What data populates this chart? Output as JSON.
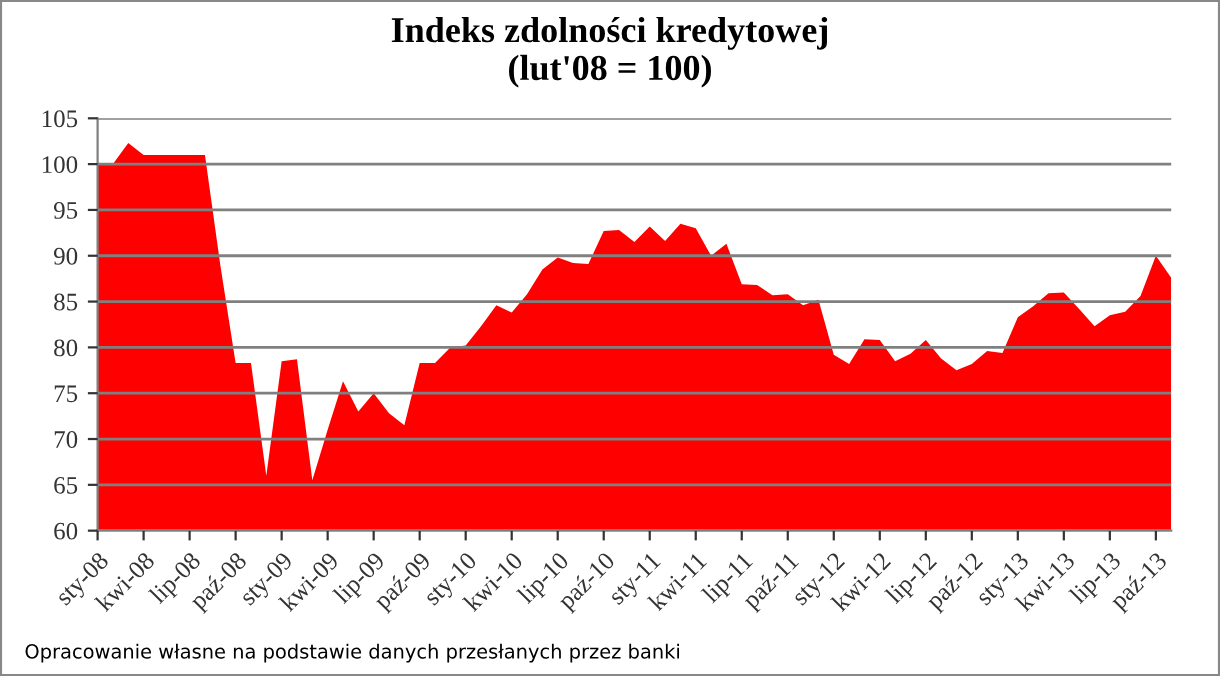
{
  "chart_data": {
    "type": "area",
    "title": "Indeks zdolności kredytowej\n(lut'08 = 100)",
    "categories": [
      "sty-08",
      null,
      null,
      "kwi-08",
      null,
      null,
      "lip-08",
      null,
      null,
      "paź-08",
      null,
      null,
      "sty-09",
      null,
      null,
      "kwi-09",
      null,
      null,
      "lip-09",
      null,
      null,
      "paź-09",
      null,
      null,
      "sty-10",
      null,
      null,
      "kwi-10",
      null,
      null,
      "lip-10",
      null,
      null,
      "paź-10",
      null,
      null,
      "sty-11",
      null,
      null,
      "kwi-11",
      null,
      null,
      "lip-11",
      null,
      null,
      "paź-11",
      null,
      null,
      "sty-12",
      null,
      null,
      "kwi-12",
      null,
      null,
      "lip-12",
      null,
      null,
      "paź-12",
      null,
      null,
      "sty-13",
      null,
      null,
      "kwi-13",
      null,
      null,
      "lip-13",
      null,
      null,
      "paź-13",
      null
    ],
    "series": [
      {
        "color": "#ff0000",
        "values": [
          100,
          100,
          102.3,
          101,
          101,
          101,
          101,
          101,
          89,
          78.3,
          78.3,
          66,
          78.5,
          78.7,
          65.5,
          71,
          76.3,
          73,
          75,
          72.8,
          71.5,
          78.3,
          78.3,
          80,
          80.2,
          82.3,
          84.6,
          83.8,
          85.8,
          88.5,
          89.8,
          89.2,
          89.1,
          92.7,
          92.8,
          91.5,
          93.2,
          91.6,
          93.5,
          93,
          90,
          91.3,
          86.9,
          86.8,
          85.7,
          85.8,
          84.6,
          85.2,
          79.2,
          78.2,
          80.9,
          80.8,
          78.5,
          79.3,
          80.8,
          78.8,
          77.5,
          78.2,
          79.6,
          79.4,
          83.3,
          84.5,
          85.9,
          86,
          84.2,
          82.3,
          83.5,
          83.9,
          85.6,
          90,
          87.6
        ]
      }
    ],
    "ylim": [
      60,
      105
    ],
    "yticks": [
      60,
      65,
      70,
      75,
      80,
      85,
      90,
      95,
      100,
      105
    ],
    "grid": "y",
    "legend": false,
    "annotations": [
      "Opracowanie własne na podstawie danych przesłanych przez banki"
    ]
  }
}
